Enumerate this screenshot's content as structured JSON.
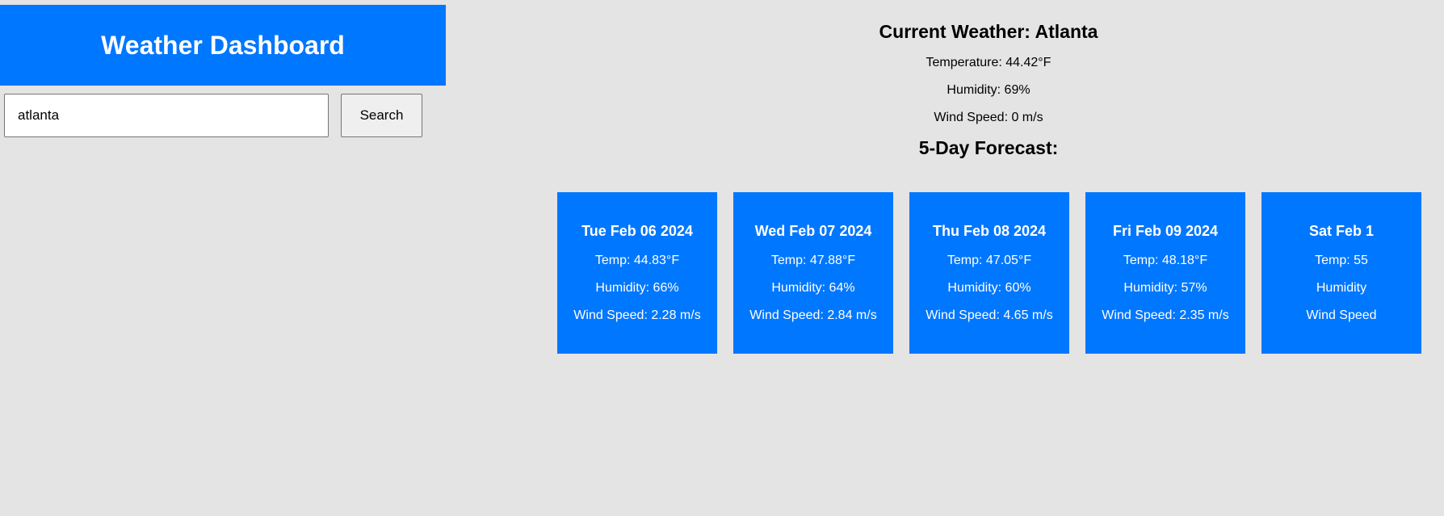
{
  "header": {
    "title": "Weather Dashboard"
  },
  "search": {
    "value": "atlanta",
    "button_label": "Search"
  },
  "current": {
    "title": "Current Weather: Atlanta",
    "temperature": "Temperature: 44.42°F",
    "humidity": "Humidity: 69%",
    "wind": "Wind Speed: 0 m/s"
  },
  "forecast": {
    "title": "5-Day Forecast:",
    "days": [
      {
        "date": "Tue Feb 06 2024",
        "temp": "Temp: 44.83°F",
        "humidity": "Humidity: 66%",
        "wind": "Wind Speed: 2.28 m/s"
      },
      {
        "date": "Wed Feb 07 2024",
        "temp": "Temp: 47.88°F",
        "humidity": "Humidity: 64%",
        "wind": "Wind Speed: 2.84 m/s"
      },
      {
        "date": "Thu Feb 08 2024",
        "temp": "Temp: 47.05°F",
        "humidity": "Humidity: 60%",
        "wind": "Wind Speed: 4.65 m/s"
      },
      {
        "date": "Fri Feb 09 2024",
        "temp": "Temp: 48.18°F",
        "humidity": "Humidity: 57%",
        "wind": "Wind Speed: 2.35 m/s"
      },
      {
        "date": "Sat Feb 1",
        "temp": "Temp: 55",
        "humidity": "Humidity",
        "wind": "Wind Speed"
      }
    ]
  },
  "colors": {
    "accent": "#0077ff",
    "background": "#e4e4e4"
  }
}
